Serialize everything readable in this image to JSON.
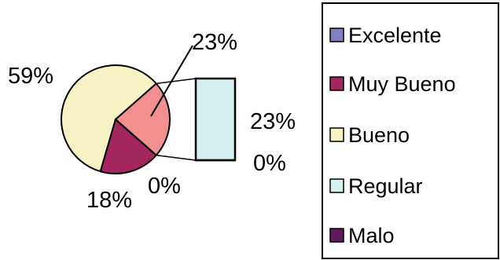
{
  "chart_data": {
    "type": "pie",
    "subtype": "pie-of-bar",
    "legend_position": "right",
    "categories": [
      "Excelente",
      "Muy Bueno",
      "Bueno",
      "Regular",
      "Malo"
    ],
    "values": [
      0,
      18,
      59,
      23,
      0
    ],
    "colors": [
      "#8080c0",
      "#a3275e",
      "#f7f2c4",
      "#d6f0f2",
      "#5e1a5a"
    ],
    "pie_labels": {
      "excelente": "0%",
      "muy_bueno": "18%",
      "bueno": "59%",
      "other": "23%"
    },
    "bar": {
      "series_in_bar": [
        "Regular",
        "Malo"
      ],
      "labels": {
        "regular": "23%",
        "malo": "0%"
      }
    },
    "other_color": "#f09090"
  }
}
